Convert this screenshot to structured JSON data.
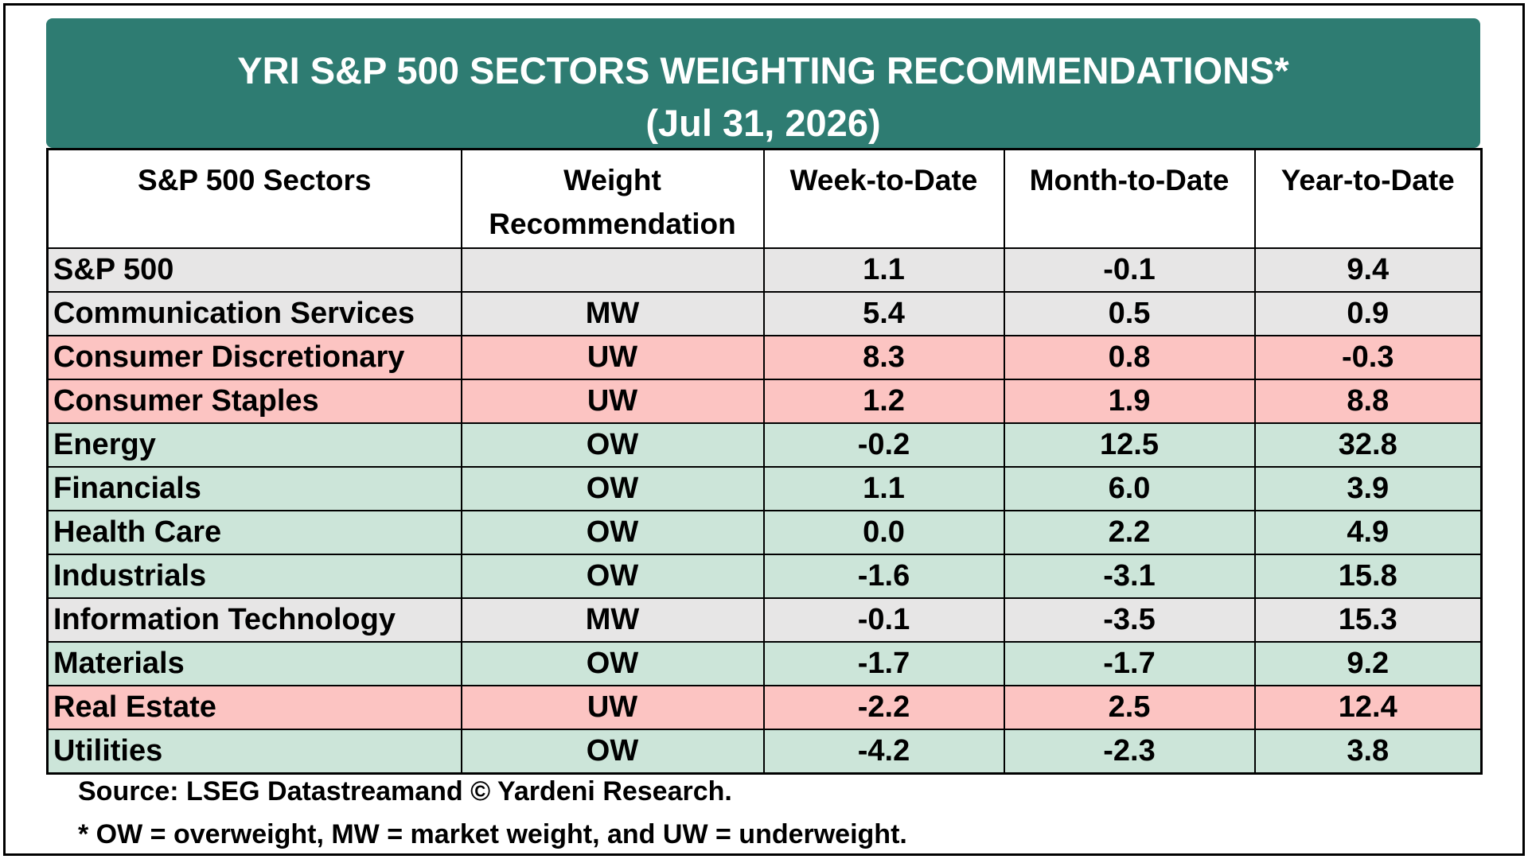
{
  "title": "YRI S&P 500 SECTORS WEIGHTING RECOMMENDATIONS*",
  "subtitle": "(Jul 31, 2026)",
  "columns": {
    "sector": "S&P 500 Sectors",
    "recommendation": "Weight\nRecommendation",
    "wtd": "Week-to-Date",
    "mtd": "Month-to-Date",
    "ytd": "Year-to-Date"
  },
  "colors": {
    "header": "#2e7c72",
    "MW": "#e7e6e6",
    "UW": "#fcc4c2",
    "OW": "#cce5d9"
  },
  "source": "Source: LSEG Datastreamand © Yardeni Research.",
  "footnote": "* OW = overweight, MW = market weight, and UW = underweight.",
  "chart_data": {
    "type": "table",
    "title": "YRI S&P 500 SECTORS WEIGHTING RECOMMENDATIONS*",
    "subtitle": "(Jul 31, 2026)",
    "columns": [
      "S&P 500 Sectors",
      "Weight Recommendation",
      "Week-to-Date",
      "Month-to-Date",
      "Year-to-Date"
    ],
    "rows": [
      {
        "sector": "S&P 500",
        "rec": "",
        "wtd": "1.1",
        "mtd": "-0.1",
        "ytd": "9.4"
      },
      {
        "sector": "Communication Services",
        "rec": "MW",
        "wtd": "5.4",
        "mtd": "0.5",
        "ytd": "0.9"
      },
      {
        "sector": "Consumer Discretionary",
        "rec": "UW",
        "wtd": "8.3",
        "mtd": "0.8",
        "ytd": "-0.3"
      },
      {
        "sector": "Consumer Staples",
        "rec": "UW",
        "wtd": "1.2",
        "mtd": "1.9",
        "ytd": "8.8"
      },
      {
        "sector": "Energy",
        "rec": "OW",
        "wtd": "-0.2",
        "mtd": "12.5",
        "ytd": "32.8"
      },
      {
        "sector": "Financials",
        "rec": "OW",
        "wtd": "1.1",
        "mtd": "6.0",
        "ytd": "3.9"
      },
      {
        "sector": "Health Care",
        "rec": "OW",
        "wtd": "0.0",
        "mtd": "2.2",
        "ytd": "4.9"
      },
      {
        "sector": "Industrials",
        "rec": "OW",
        "wtd": "-1.6",
        "mtd": "-3.1",
        "ytd": "15.8"
      },
      {
        "sector": "Information Technology",
        "rec": "MW",
        "wtd": "-0.1",
        "mtd": "-3.5",
        "ytd": "15.3"
      },
      {
        "sector": "Materials",
        "rec": "OW",
        "wtd": "-1.7",
        "mtd": "-1.7",
        "ytd": "9.2"
      },
      {
        "sector": "Real Estate",
        "rec": "UW",
        "wtd": "-2.2",
        "mtd": "2.5",
        "ytd": "12.4"
      },
      {
        "sector": "Utilities",
        "rec": "OW",
        "wtd": "-4.2",
        "mtd": "-2.3",
        "ytd": "3.8"
      }
    ]
  }
}
